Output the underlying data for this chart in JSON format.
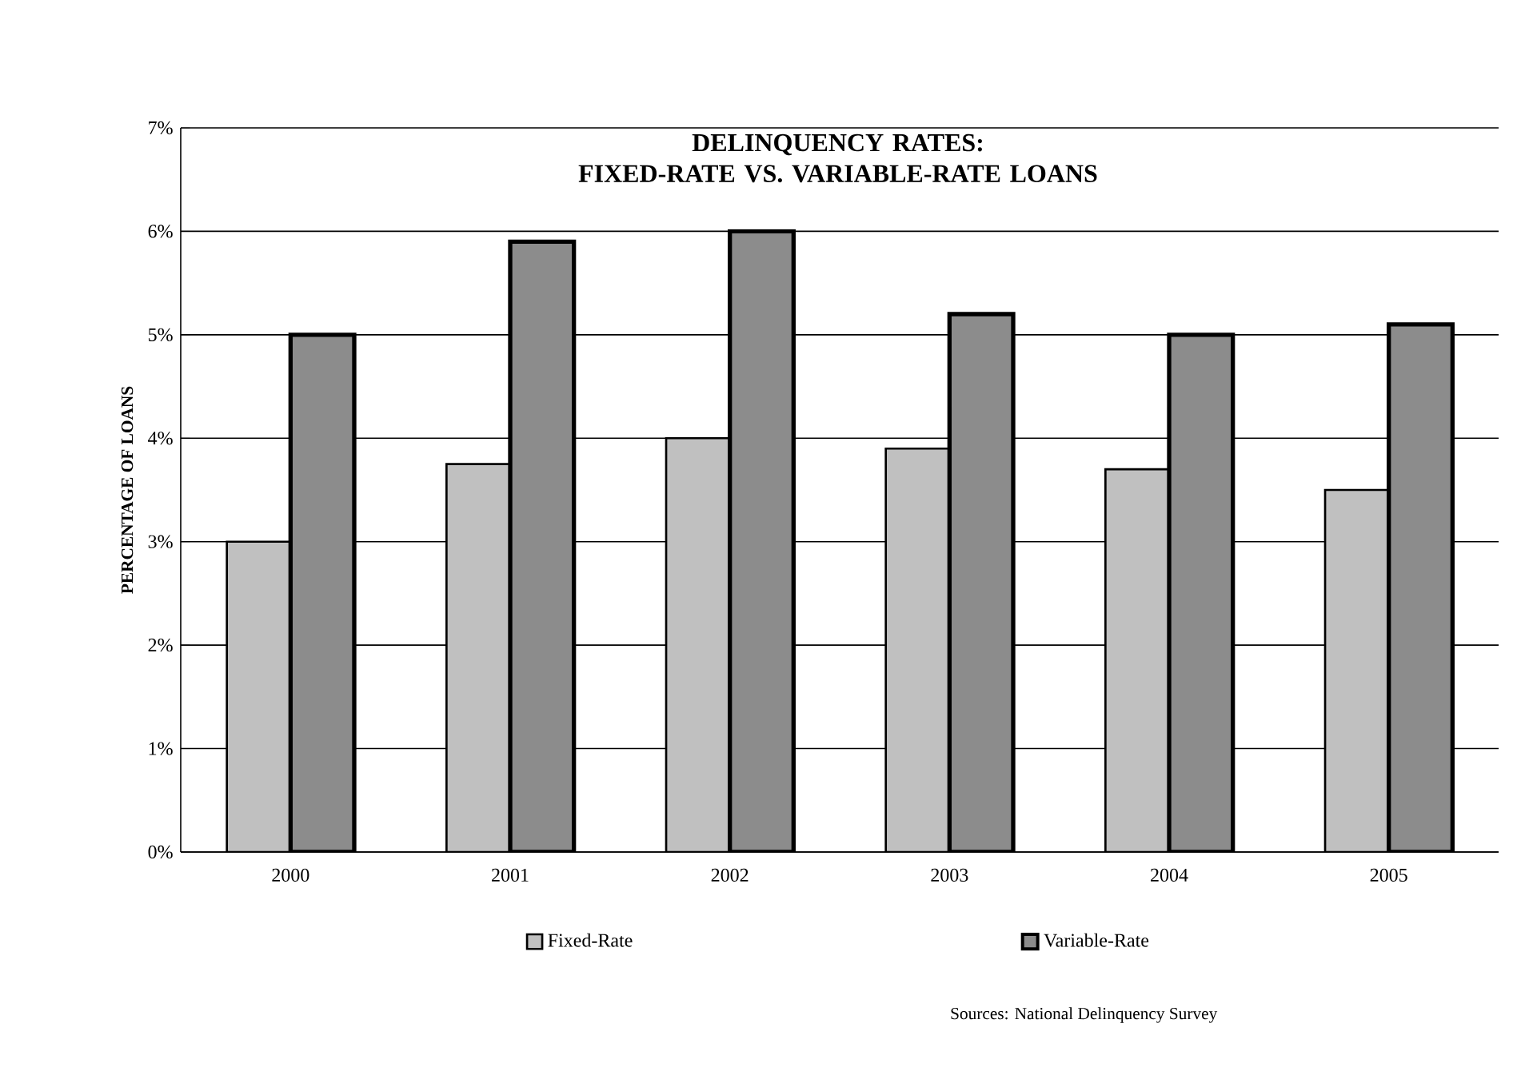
{
  "chart_data": {
    "type": "bar",
    "title": "DELINQUENCY RATES:\nFIXED-RATE VS. VARIABLE-RATE LOANS",
    "ylabel": "PERCENTAGE OF LOANS",
    "categories": [
      "2000",
      "2001",
      "2002",
      "2003",
      "2004",
      "2005"
    ],
    "series": [
      {
        "name": "Fixed-Rate",
        "color": "#c0c0c0",
        "values": [
          3.0,
          3.75,
          4.0,
          3.9,
          3.7,
          3.5
        ]
      },
      {
        "name": "Variable-Rate",
        "color": "#8c8c8c",
        "values": [
          5.0,
          5.9,
          6.0,
          5.2,
          5.0,
          5.1
        ]
      }
    ],
    "ylim": [
      0,
      7
    ],
    "yticks": [
      {
        "value": 0,
        "label": "0%"
      },
      {
        "value": 1,
        "label": "1%"
      },
      {
        "value": 2,
        "label": "2%"
      },
      {
        "value": 3,
        "label": "3%"
      },
      {
        "value": 4,
        "label": "4%"
      },
      {
        "value": 5,
        "label": "5%"
      },
      {
        "value": 6,
        "label": "6%"
      },
      {
        "value": 7,
        "label": "7%"
      }
    ],
    "grid": "y",
    "legend": "bottom",
    "annotations": [
      "Sources: National Delinquency Survey"
    ]
  }
}
